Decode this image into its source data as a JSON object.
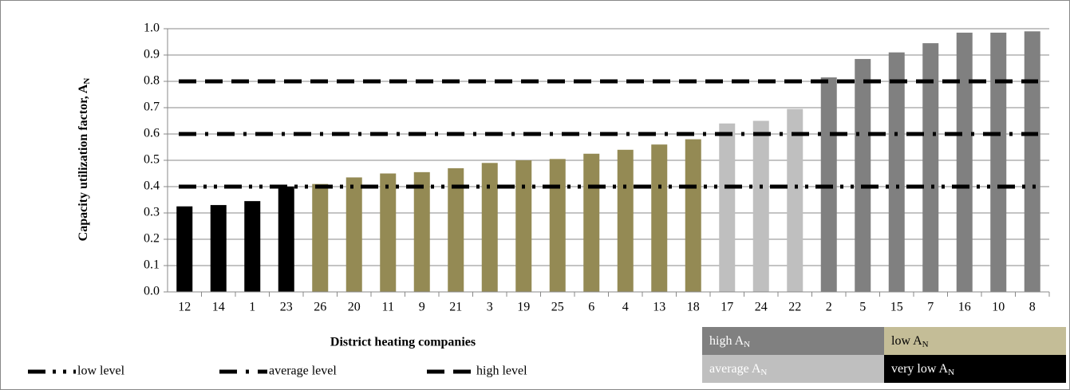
{
  "chart_data": {
    "type": "bar",
    "x_label": "District heating companies",
    "y_label": {
      "text": "Capacity utilization factor, A",
      "sub": "N"
    },
    "categories": [
      "12",
      "14",
      "1",
      "23",
      "26",
      "20",
      "11",
      "9",
      "21",
      "3",
      "19",
      "25",
      "6",
      "4",
      "13",
      "18",
      "17",
      "24",
      "22",
      "2",
      "5",
      "15",
      "7",
      "16",
      "10",
      "8"
    ],
    "values": [
      0.325,
      0.33,
      0.345,
      0.4,
      0.41,
      0.435,
      0.45,
      0.455,
      0.47,
      0.49,
      0.5,
      0.505,
      0.525,
      0.54,
      0.56,
      0.58,
      0.64,
      0.65,
      0.695,
      0.815,
      0.885,
      0.91,
      0.945,
      0.985,
      0.985,
      0.99
    ],
    "colors": [
      "#000000",
      "#000000",
      "#000000",
      "#000000",
      "#948a54",
      "#948a54",
      "#948a54",
      "#948a54",
      "#948a54",
      "#948a54",
      "#948a54",
      "#948a54",
      "#948a54",
      "#948a54",
      "#948a54",
      "#948a54",
      "#bfbfbf",
      "#bfbfbf",
      "#bfbfbf",
      "#808080",
      "#808080",
      "#808080",
      "#808080",
      "#808080",
      "#808080",
      "#808080"
    ],
    "ylim": [
      0,
      1
    ],
    "yticks": [
      {
        "value": 0,
        "label": "0.0"
      },
      0.1,
      0.2,
      0.3,
      0.4,
      0.5,
      0.6,
      0.7,
      0.8,
      0.9,
      {
        "value": 1,
        "label": "1.0"
      }
    ],
    "grid": true,
    "reference_lines": [
      {
        "name": "low level",
        "value": 0.4,
        "dash": "22 9 4 9 4 9"
      },
      {
        "name": "average level",
        "value": 0.6,
        "dash": "22 11 4 11"
      },
      {
        "name": "high level",
        "value": 0.8,
        "dash": "22 11"
      }
    ],
    "color_legend": [
      {
        "text": "high A",
        "sub": "N",
        "color": "#808080",
        "text_color": "#ffffff"
      },
      {
        "text": "low A",
        "sub": "N",
        "color": "#c4bd97",
        "text_color": "#000000"
      },
      {
        "text": "average A",
        "sub": "N",
        "color": "#bfbfbf",
        "text_color": "#ffffff"
      },
      {
        "text": "very low  A",
        "sub": "N",
        "color": "#000000",
        "text_color": "#ffffff"
      }
    ]
  }
}
